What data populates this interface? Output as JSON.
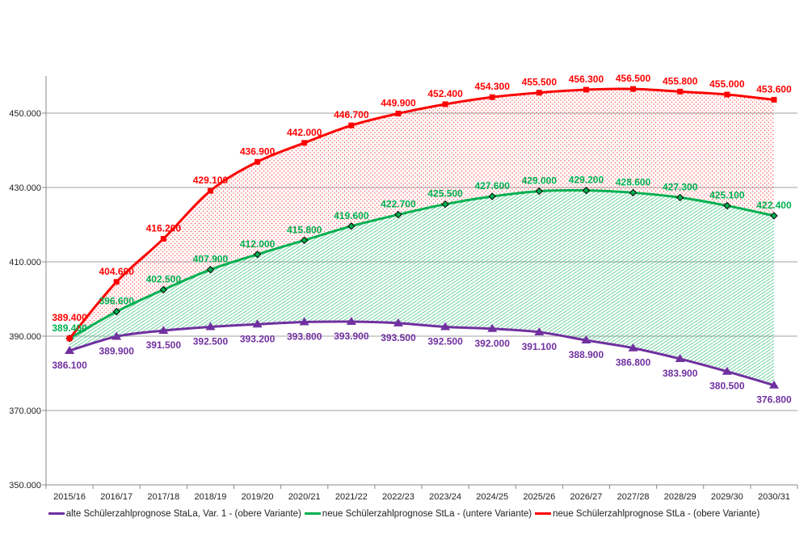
{
  "chart_data": {
    "type": "line",
    "title": "",
    "xlabel": "",
    "ylabel": "",
    "ylim": [
      350000,
      460000
    ],
    "yticks": [
      350000,
      370000,
      390000,
      410000,
      430000,
      450000
    ],
    "ytick_labels": [
      "350.000",
      "370.000",
      "390.000",
      "410.000",
      "430.000",
      "450.000"
    ],
    "grid": "horizontal",
    "legend_position": "bottom",
    "categories": [
      "2015/16",
      "2016/17",
      "2017/18",
      "2018/19",
      "2019/20",
      "2020/21",
      "2021/22",
      "2022/23",
      "2023/24",
      "2024/25",
      "2025/26",
      "2026/27",
      "2027/28",
      "2028/29",
      "2029/30",
      "2030/31"
    ],
    "series": [
      {
        "name": "alte Schülerzahlprognose StaLa, Var. 1 - (obere Variante)",
        "color": "#7030a0",
        "marker": "triangle",
        "values": [
          386100,
          389900,
          391500,
          392500,
          393200,
          393800,
          393900,
          393500,
          392500,
          392000,
          391100,
          388900,
          386800,
          383900,
          380500,
          376800
        ],
        "labels": [
          "386.100",
          "389.900",
          "391.500",
          "392.500",
          "393.200",
          "393.800",
          "393.900",
          "393.500",
          "392.500",
          "392.000",
          "391.100",
          "388.900",
          "386.800",
          "383.900",
          "380.500",
          "376.800"
        ]
      },
      {
        "name": "neue Schülerzahlprognose StLa - (untere Variante)",
        "color": "#00b050",
        "marker": "diamond",
        "values": [
          389400,
          396600,
          402500,
          407900,
          412000,
          415800,
          419600,
          422700,
          425500,
          427600,
          429000,
          429200,
          428600,
          427300,
          425100,
          422400
        ],
        "labels": [
          "389.400",
          "396.600",
          "402.500",
          "407.900",
          "412.000",
          "415.800",
          "419.600",
          "422.700",
          "425.500",
          "427.600",
          "429.000",
          "429.200",
          "428.600",
          "427.300",
          "425.100",
          "422.400"
        ]
      },
      {
        "name": "neue Schülerzahlprognose StLa - (obere Variante)",
        "color": "#ff0000",
        "marker": "square",
        "values": [
          389400,
          404600,
          416200,
          429100,
          436900,
          442000,
          446700,
          449900,
          452400,
          454300,
          455500,
          456300,
          456500,
          455800,
          455000,
          453600
        ],
        "labels": [
          "389.400",
          "404.600",
          "416.200",
          "429.100",
          "436.900",
          "442.000",
          "446.700",
          "449.900",
          "452.400",
          "454.300",
          "455.500",
          "456.300",
          "456.500",
          "455.800",
          "455.000",
          "453.600"
        ]
      }
    ],
    "fills": [
      {
        "between": [
          "neue Schülerzahlprognose StLa - (untere Variante)",
          "alte Schülerzahlprognose StaLa, Var. 1 - (obere Variante)"
        ],
        "pattern": "hatch",
        "color": "#00b050"
      },
      {
        "between": [
          "neue Schülerzahlprognose StLa - (obere Variante)",
          "neue Schülerzahlprognose StLa - (untere Variante)"
        ],
        "pattern": "dots",
        "color": "#ff0000"
      }
    ]
  }
}
